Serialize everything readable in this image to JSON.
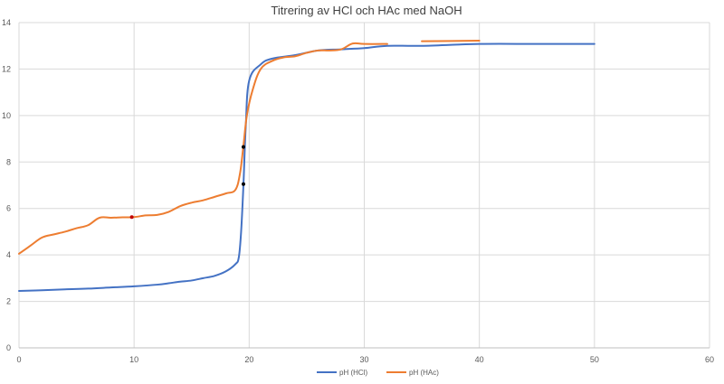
{
  "chart_data": {
    "type": "line",
    "title": "Titrering av HCl och HAc med NaOH",
    "xlabel": "",
    "ylabel": "",
    "xlim": [
      0,
      60
    ],
    "ylim": [
      0,
      14
    ],
    "x_ticks": [
      "0",
      "10",
      "20",
      "30",
      "40",
      "50",
      "60"
    ],
    "y_ticks": [
      "0",
      "2",
      "4",
      "6",
      "8",
      "10",
      "12",
      "14"
    ],
    "grid": true,
    "legend_position": "bottom",
    "series": [
      {
        "name": "pH (HCl)",
        "color": "#4472C4",
        "segments": [
          [
            [
              0,
              2.45
            ],
            [
              2,
              2.48
            ],
            [
              4,
              2.52
            ],
            [
              6,
              2.55
            ],
            [
              8,
              2.6
            ],
            [
              10,
              2.65
            ],
            [
              12,
              2.72
            ],
            [
              13,
              2.78
            ],
            [
              14,
              2.85
            ],
            [
              15,
              2.9
            ],
            [
              16,
              3.0
            ],
            [
              17,
              3.1
            ],
            [
              18,
              3.3
            ],
            [
              18.8,
              3.6
            ],
            [
              19.1,
              3.9
            ],
            [
              19.3,
              5.0
            ],
            [
              19.5,
              7.0
            ],
            [
              19.7,
              9.5
            ],
            [
              20.0,
              11.5
            ],
            [
              21,
              12.2
            ],
            [
              22,
              12.45
            ],
            [
              24,
              12.6
            ],
            [
              26,
              12.8
            ],
            [
              28,
              12.85
            ],
            [
              30,
              12.9
            ],
            [
              32,
              13.0
            ],
            [
              35,
              13.0
            ],
            [
              40,
              13.08
            ],
            [
              45,
              13.08
            ],
            [
              50,
              13.08
            ]
          ]
        ]
      },
      {
        "name": "pH (HAc)",
        "color": "#ED7D31",
        "segments": [
          [
            [
              0,
              4.05
            ],
            [
              1,
              4.4
            ],
            [
              2,
              4.75
            ],
            [
              3,
              4.88
            ],
            [
              4,
              5.0
            ],
            [
              5,
              5.15
            ],
            [
              6,
              5.28
            ],
            [
              7,
              5.6
            ],
            [
              8,
              5.6
            ],
            [
              9,
              5.62
            ],
            [
              10,
              5.63
            ],
            [
              11,
              5.7
            ],
            [
              12,
              5.72
            ],
            [
              13,
              5.85
            ],
            [
              14,
              6.1
            ],
            [
              15,
              6.25
            ],
            [
              16,
              6.35
            ],
            [
              17,
              6.5
            ],
            [
              18,
              6.65
            ],
            [
              18.8,
              6.8
            ],
            [
              19.2,
              7.5
            ],
            [
              19.5,
              8.7
            ],
            [
              19.8,
              10.0
            ],
            [
              20.3,
              11.1
            ],
            [
              21,
              12.0
            ],
            [
              22,
              12.35
            ],
            [
              23,
              12.5
            ],
            [
              24,
              12.55
            ],
            [
              25,
              12.7
            ],
            [
              26,
              12.8
            ],
            [
              27,
              12.8
            ],
            [
              28,
              12.85
            ],
            [
              29,
              13.1
            ],
            [
              30,
              13.08
            ],
            [
              32,
              13.08
            ]
          ],
          [
            [
              35,
              13.2
            ],
            [
              40,
              13.22
            ]
          ]
        ]
      }
    ],
    "marked_points": [
      {
        "x": 19.5,
        "y": 8.65,
        "color": "#000000"
      },
      {
        "x": 19.5,
        "y": 7.05,
        "color": "#000000"
      },
      {
        "x": 9.8,
        "y": 5.63,
        "color": "#C00000"
      }
    ]
  }
}
